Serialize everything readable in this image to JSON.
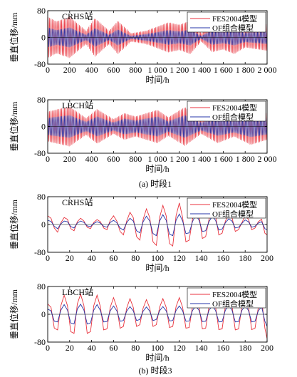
{
  "chart_data": [
    {
      "type": "line",
      "panel": "a1",
      "station": "CRHS站",
      "xlabel": "时间/h",
      "ylabel": "垂直位移/mm",
      "xlim": [
        0,
        2000
      ],
      "ylim": [
        -80,
        80
      ],
      "xticks": [
        0,
        200,
        400,
        600,
        800,
        1000,
        1200,
        1400,
        1600,
        1800,
        2000
      ],
      "xtick_labels": [
        "0",
        "200",
        "400",
        "600",
        "800",
        "1 000",
        "1 200",
        "1 400",
        "1 600",
        "1 800",
        "2 000"
      ],
      "yticks": [
        -80,
        0,
        80
      ],
      "ytick_labels": [
        "-80",
        "0",
        "80"
      ],
      "legend": "top-right",
      "series": [
        {
          "name": "FES2004模型",
          "color": "#e8323c",
          "amplitude_envelope": [
            [
              0,
              62
            ],
            [
              80,
              48
            ],
            [
              200,
              62
            ],
            [
              350,
              20
            ],
            [
              430,
              58
            ],
            [
              560,
              20
            ],
            [
              640,
              50
            ],
            [
              760,
              12
            ],
            [
              900,
              20
            ],
            [
              1100,
              45
            ],
            [
              1200,
              38
            ],
            [
              1300,
              50
            ],
            [
              1400,
              12
            ],
            [
              1500,
              44
            ],
            [
              1600,
              36
            ],
            [
              1700,
              50
            ],
            [
              1800,
              30
            ],
            [
              2000,
              40
            ]
          ],
          "period": 12.4
        },
        {
          "name": "OF组合模型",
          "color": "#2434a8",
          "amplitude_envelope": [
            [
              0,
              30
            ],
            [
              80,
              22
            ],
            [
              200,
              30
            ],
            [
              350,
              8
            ],
            [
              430,
              28
            ],
            [
              560,
              8
            ],
            [
              640,
              24
            ],
            [
              760,
              4
            ],
            [
              900,
              10
            ],
            [
              1100,
              22
            ],
            [
              1200,
              18
            ],
            [
              1300,
              24
            ],
            [
              1400,
              4
            ],
            [
              1500,
              22
            ],
            [
              1600,
              18
            ],
            [
              1700,
              24
            ],
            [
              1800,
              14
            ],
            [
              2000,
              20
            ]
          ],
          "period": 12.4
        }
      ]
    },
    {
      "type": "line",
      "panel": "a2",
      "station": "LBCH站",
      "xlabel": "时间/h",
      "ylabel": "垂直位移/mm",
      "xlim": [
        0,
        2000
      ],
      "ylim": [
        -80,
        80
      ],
      "xticks": [
        0,
        200,
        400,
        600,
        800,
        1000,
        1200,
        1400,
        1600,
        1800,
        2000
      ],
      "xtick_labels": [
        "0",
        "200",
        "400",
        "600",
        "800",
        "1 000",
        "1 200",
        "1 400",
        "1 600",
        "1 800",
        "2 000"
      ],
      "yticks": [
        -80,
        0,
        80
      ],
      "ytick_labels": [
        "-80",
        "0",
        "80"
      ],
      "legend": "top-right",
      "series": [
        {
          "name": "FES2004模型",
          "color": "#e8323c",
          "amplitude_envelope": [
            [
              0,
              45
            ],
            [
              200,
              60
            ],
            [
              350,
              25
            ],
            [
              450,
              52
            ],
            [
              600,
              22
            ],
            [
              700,
              40
            ],
            [
              800,
              30
            ],
            [
              1000,
              50
            ],
            [
              1100,
              28
            ],
            [
              1250,
              58
            ],
            [
              1400,
              22
            ],
            [
              1550,
              50
            ],
            [
              1700,
              30
            ],
            [
              1850,
              55
            ],
            [
              2000,
              40
            ]
          ],
          "period": 12.4
        },
        {
          "name": "OF组合模型",
          "color": "#2434a8",
          "amplitude_envelope": [
            [
              0,
              26
            ],
            [
              200,
              34
            ],
            [
              350,
              14
            ],
            [
              450,
              30
            ],
            [
              600,
              12
            ],
            [
              700,
              24
            ],
            [
              800,
              18
            ],
            [
              1000,
              30
            ],
            [
              1100,
              16
            ],
            [
              1250,
              34
            ],
            [
              1400,
              12
            ],
            [
              1550,
              28
            ],
            [
              1700,
              18
            ],
            [
              1850,
              32
            ],
            [
              2000,
              24
            ]
          ],
          "period": 12.4
        }
      ]
    },
    {
      "type": "line",
      "panel": "b1",
      "station": "CRHS站",
      "xlabel": "时间/h",
      "ylabel": "垂直位移/mm",
      "xlim": [
        0,
        200
      ],
      "ylim": [
        -80,
        80
      ],
      "xticks": [
        0,
        20,
        40,
        60,
        80,
        100,
        120,
        140,
        160,
        180,
        200
      ],
      "xtick_labels": [
        "0",
        "20",
        "40",
        "60",
        "80",
        "100",
        "120",
        "140",
        "160",
        "180",
        "200"
      ],
      "yticks": [
        -80,
        0,
        80
      ],
      "ytick_labels": [
        "-80",
        "0",
        "80"
      ],
      "legend": "top-right",
      "series": [
        {
          "name": "FES2004模型",
          "color": "#e8323c",
          "x": [
            0,
            3,
            6,
            9,
            12,
            15,
            18,
            21,
            24,
            27,
            30,
            33,
            36,
            39,
            42,
            45,
            48,
            51,
            54,
            57,
            60,
            63,
            66,
            69,
            72,
            75,
            78,
            81,
            84,
            87,
            90,
            93,
            96,
            99,
            102,
            105,
            108,
            111,
            114,
            117,
            120,
            123,
            126,
            129,
            132,
            135,
            138,
            141,
            144,
            147,
            150,
            153,
            156,
            159,
            162,
            165,
            168,
            171,
            174,
            177,
            180,
            183,
            186,
            189,
            192,
            195,
            198,
            200
          ],
          "y": [
            25,
            18,
            -10,
            -22,
            5,
            20,
            15,
            -12,
            -18,
            8,
            18,
            10,
            -8,
            -12,
            6,
            14,
            8,
            -10,
            -15,
            12,
            25,
            10,
            -20,
            -30,
            10,
            35,
            20,
            -35,
            -45,
            15,
            45,
            20,
            -50,
            -60,
            20,
            55,
            25,
            -55,
            -62,
            25,
            62,
            20,
            -50,
            -45,
            15,
            55,
            25,
            -40,
            -35,
            15,
            45,
            25,
            -30,
            -25,
            10,
            30,
            20,
            -20,
            -15,
            5,
            25,
            15,
            -15,
            -10,
            8,
            15,
            -25,
            -30
          ]
        },
        {
          "name": "OF组合模型",
          "color": "#2434a8",
          "x": [
            0,
            3,
            6,
            9,
            12,
            15,
            18,
            21,
            24,
            27,
            30,
            33,
            36,
            39,
            42,
            45,
            48,
            51,
            54,
            57,
            60,
            63,
            66,
            69,
            72,
            75,
            78,
            81,
            84,
            87,
            90,
            93,
            96,
            99,
            102,
            105,
            108,
            111,
            114,
            117,
            120,
            123,
            126,
            129,
            132,
            135,
            138,
            141,
            144,
            147,
            150,
            153,
            156,
            159,
            162,
            165,
            168,
            171,
            174,
            177,
            180,
            183,
            186,
            189,
            192,
            195,
            198,
            200
          ],
          "y": [
            12,
            9,
            -5,
            -12,
            2,
            10,
            8,
            -6,
            -10,
            4,
            10,
            6,
            -4,
            -6,
            3,
            8,
            4,
            -5,
            -8,
            6,
            12,
            5,
            -10,
            -16,
            5,
            18,
            10,
            -18,
            -24,
            8,
            24,
            10,
            -26,
            -32,
            10,
            28,
            12,
            -28,
            -32,
            12,
            30,
            10,
            -26,
            -24,
            8,
            28,
            12,
            -20,
            -18,
            8,
            24,
            12,
            -16,
            -13,
            5,
            16,
            10,
            -10,
            -8,
            3,
            13,
            8,
            -8,
            -5,
            4,
            8,
            -12,
            -15
          ]
        }
      ]
    },
    {
      "type": "line",
      "panel": "b2",
      "station": "LBCH站",
      "xlabel": "时间/h",
      "ylabel": "垂直位移/mm",
      "xlim": [
        0,
        200
      ],
      "ylim": [
        -80,
        80
      ],
      "xticks": [
        0,
        20,
        40,
        60,
        80,
        100,
        120,
        140,
        160,
        180,
        200
      ],
      "xtick_labels": [
        "0",
        "20",
        "40",
        "60",
        "80",
        "100",
        "120",
        "140",
        "160",
        "180",
        "200"
      ],
      "yticks": [
        -80,
        0,
        80
      ],
      "ytick_labels": [
        "-80",
        "0",
        "80"
      ],
      "legend": "top-right",
      "series": [
        {
          "name": "FES2004模型",
          "color": "#e8323c",
          "x": [
            0,
            3,
            6,
            9,
            12,
            15,
            18,
            21,
            24,
            27,
            30,
            33,
            36,
            39,
            42,
            45,
            48,
            51,
            54,
            57,
            60,
            63,
            66,
            69,
            72,
            75,
            78,
            81,
            84,
            87,
            90,
            93,
            96,
            99,
            102,
            105,
            108,
            111,
            114,
            117,
            120,
            123,
            126,
            129,
            132,
            135,
            138,
            141,
            144,
            147,
            150,
            153,
            156,
            159,
            162,
            165,
            168,
            171,
            174,
            177,
            180,
            183,
            186,
            189,
            192,
            195,
            198,
            200
          ],
          "y": [
            30,
            20,
            -40,
            -45,
            25,
            55,
            25,
            -50,
            -55,
            30,
            58,
            25,
            -55,
            -50,
            25,
            55,
            22,
            -45,
            -42,
            20,
            48,
            20,
            -40,
            -35,
            18,
            45,
            20,
            -35,
            -30,
            18,
            42,
            18,
            -35,
            -30,
            20,
            45,
            20,
            -38,
            -35,
            22,
            48,
            20,
            -40,
            -38,
            22,
            48,
            22,
            -42,
            -40,
            22,
            50,
            22,
            -44,
            -42,
            24,
            52,
            24,
            -45,
            -42,
            22,
            50,
            22,
            -44,
            -40,
            20,
            45,
            -40,
            -70
          ]
        },
        {
          "name": "OF组合模型",
          "color": "#2434a8",
          "x": [
            0,
            3,
            6,
            9,
            12,
            15,
            18,
            21,
            24,
            27,
            30,
            33,
            36,
            39,
            42,
            45,
            48,
            51,
            54,
            57,
            60,
            63,
            66,
            69,
            72,
            75,
            78,
            81,
            84,
            87,
            90,
            93,
            96,
            99,
            102,
            105,
            108,
            111,
            114,
            117,
            120,
            123,
            126,
            129,
            132,
            135,
            138,
            141,
            144,
            147,
            150,
            153,
            156,
            159,
            162,
            165,
            168,
            171,
            174,
            177,
            180,
            183,
            186,
            189,
            192,
            195,
            198,
            200
          ],
          "y": [
            15,
            10,
            -20,
            -22,
            12,
            28,
            12,
            -25,
            -28,
            15,
            29,
            12,
            -28,
            -25,
            12,
            28,
            11,
            -22,
            -21,
            10,
            24,
            10,
            -20,
            -18,
            9,
            22,
            10,
            -18,
            -15,
            9,
            21,
            9,
            -18,
            -15,
            10,
            22,
            10,
            -19,
            -18,
            11,
            24,
            10,
            -20,
            -19,
            11,
            24,
            11,
            -21,
            -20,
            11,
            25,
            11,
            -22,
            -21,
            12,
            26,
            12,
            -22,
            -21,
            11,
            25,
            11,
            -22,
            -20,
            10,
            22,
            -20,
            -35
          ]
        }
      ]
    }
  ],
  "captions": {
    "a": "(a) 时段1",
    "b": "(b) 时段3"
  }
}
